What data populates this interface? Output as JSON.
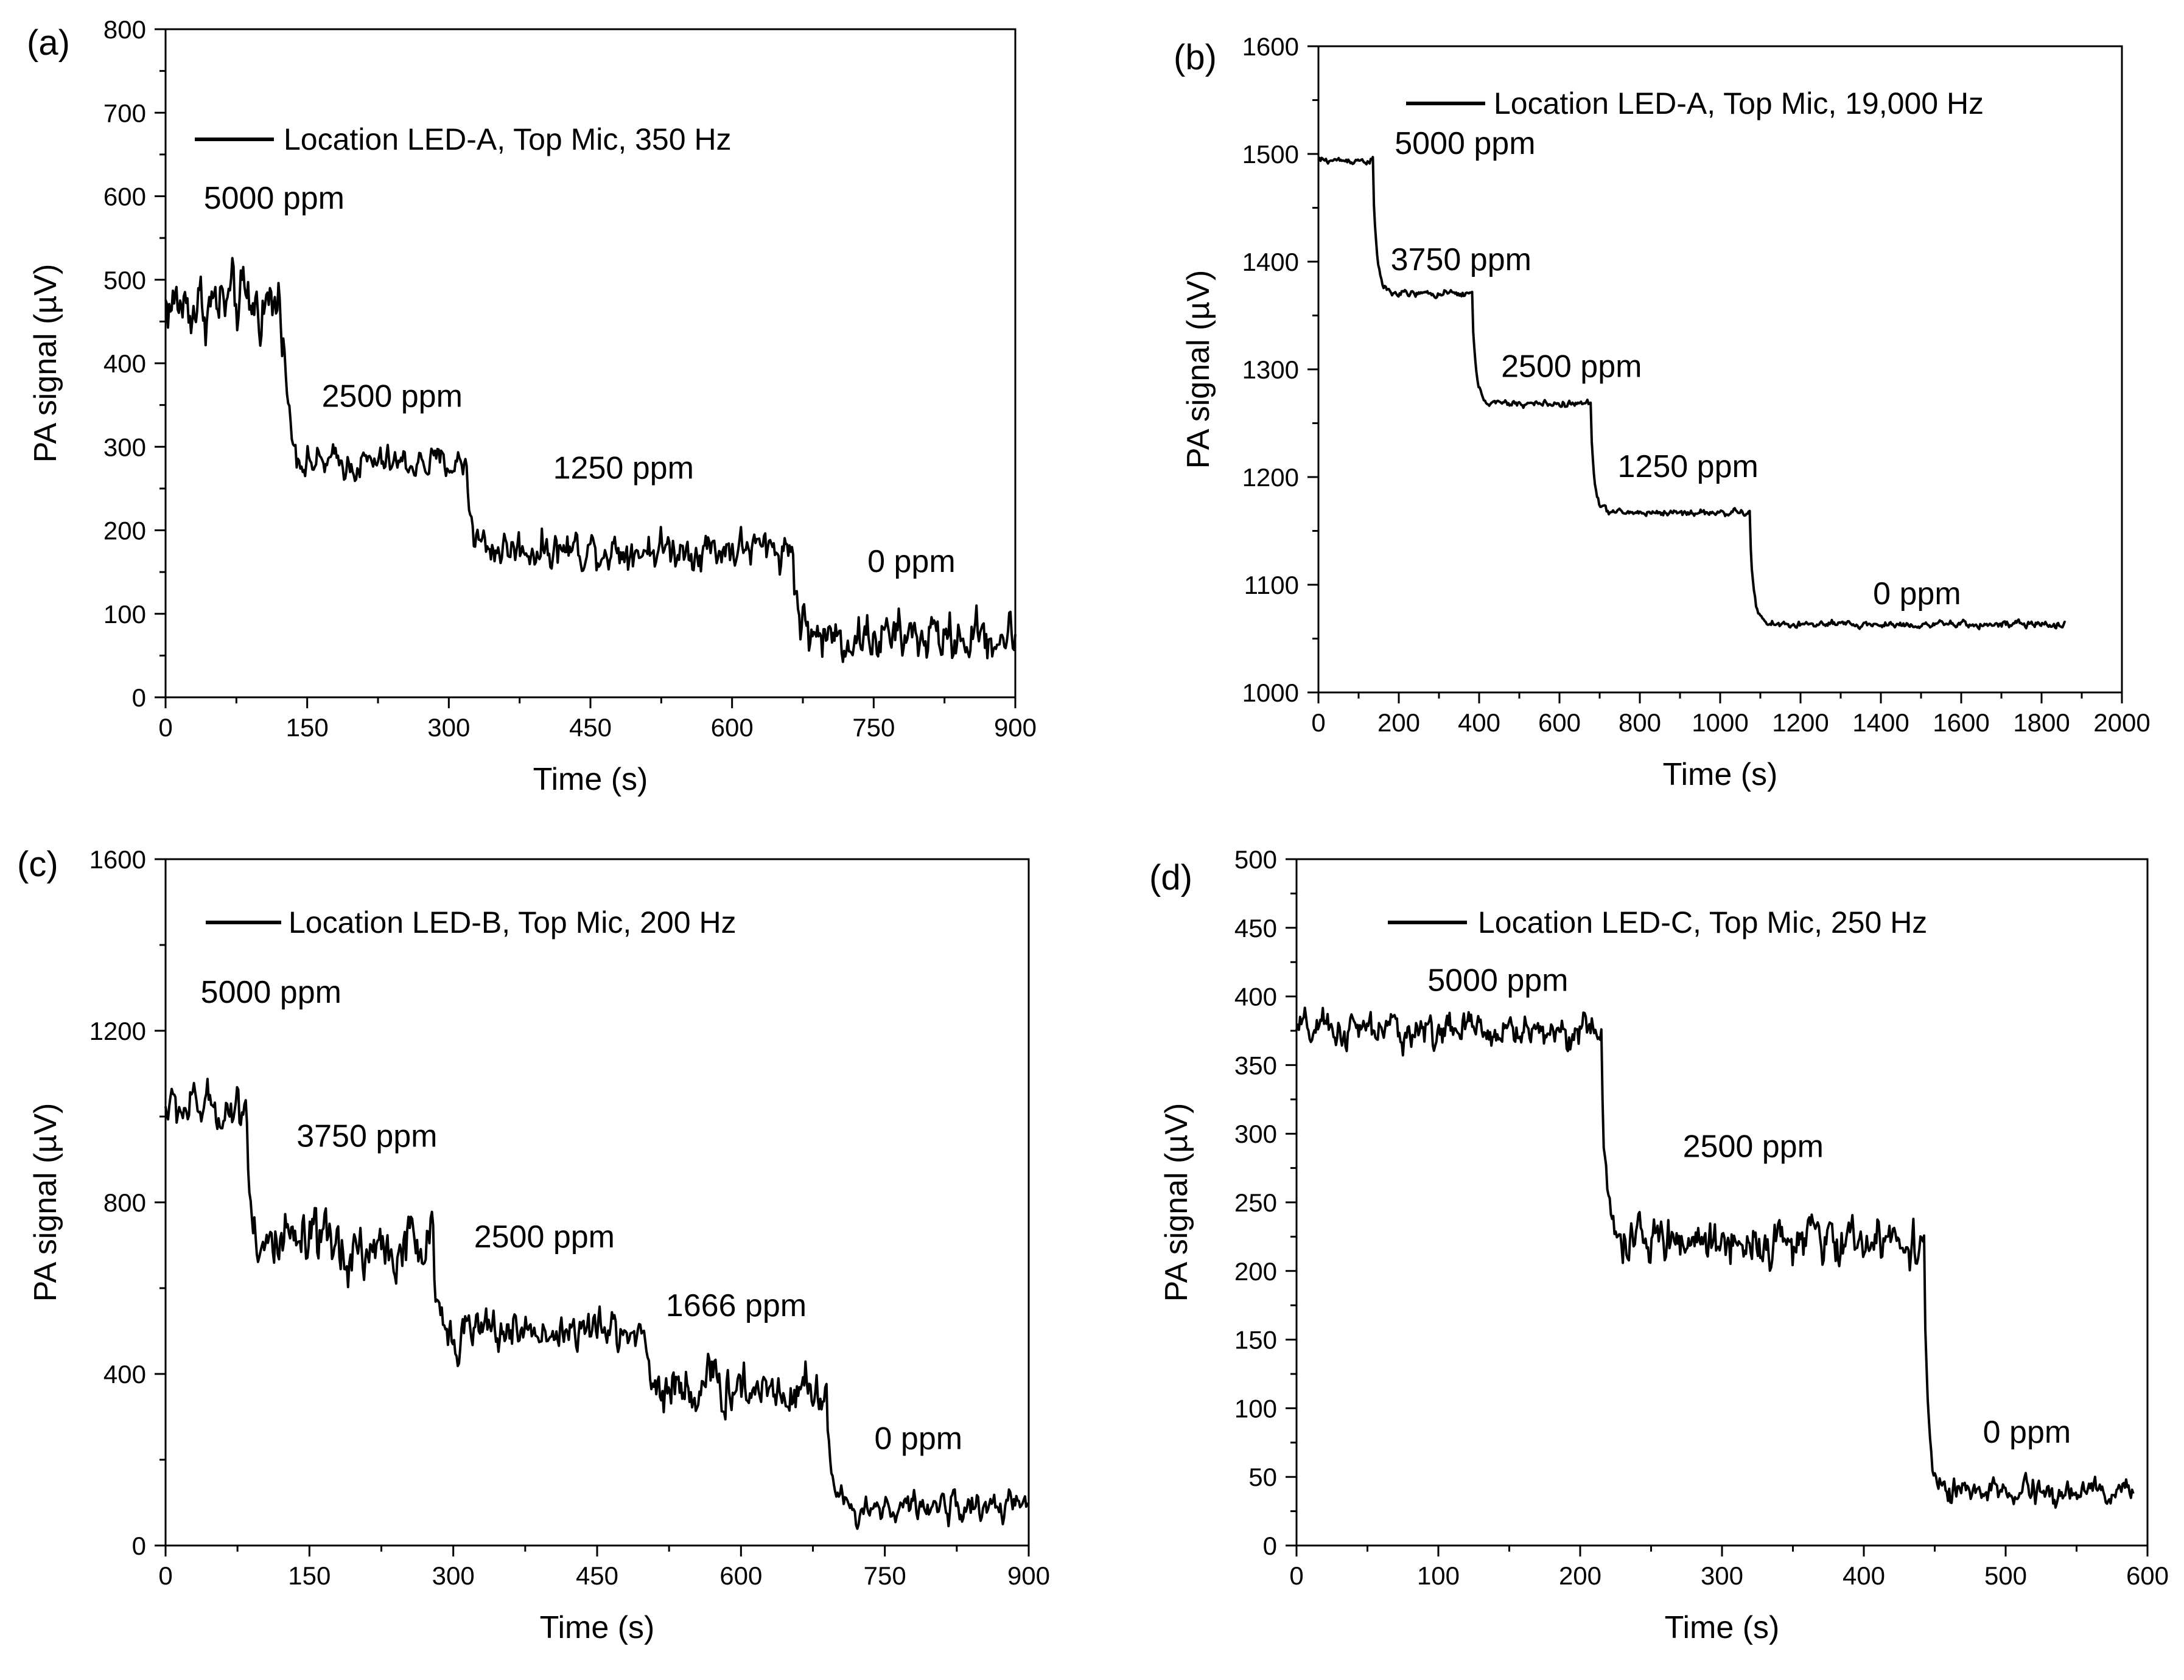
{
  "chart_data": [
    {
      "type": "line",
      "panel_label": "(a)",
      "legend": "Location LED-A, Top Mic, 350 Hz",
      "xlabel": "Time (s)",
      "ylabel": "PA signal (µV)",
      "xlim": [
        0,
        900
      ],
      "ylim": [
        0,
        800
      ],
      "xticks": [
        0,
        150,
        300,
        450,
        600,
        750,
        900
      ],
      "yticks": [
        0,
        100,
        200,
        300,
        400,
        500,
        600,
        700,
        800
      ],
      "step_labels": [
        {
          "text": "5000 ppm",
          "x": 115,
          "y": 585
        },
        {
          "text": "2500 ppm",
          "x": 240,
          "y": 348
        },
        {
          "text": "1250 ppm",
          "x": 485,
          "y": 262
        },
        {
          "text": "0 ppm",
          "x": 790,
          "y": 150
        }
      ],
      "steps": [
        {
          "t_start": 0,
          "t_end": 125,
          "level": 470,
          "noise": 38
        },
        {
          "t_start": 125,
          "t_end": 320,
          "level": 280,
          "noise": 18
        },
        {
          "t_start": 320,
          "t_end": 665,
          "level": 178,
          "noise": 22
        },
        {
          "t_start": 665,
          "t_end": 900,
          "level": 72,
          "noise": 28
        }
      ],
      "tau": 6
    },
    {
      "type": "line",
      "panel_label": "(b)",
      "legend": "Location LED-A, Top Mic, 19,000 Hz",
      "xlabel": "Time (s)",
      "ylabel": "PA signal (µV)",
      "xlim": [
        0,
        2000
      ],
      "ylim": [
        1000,
        1600
      ],
      "xticks": [
        0,
        200,
        400,
        600,
        800,
        1000,
        1200,
        1400,
        1600,
        1800,
        2000
      ],
      "yticks": [
        1000,
        1100,
        1200,
        1300,
        1400,
        1500,
        1600
      ],
      "step_labels": [
        {
          "text": "5000 ppm",
          "x": 365,
          "y": 1500
        },
        {
          "text": "3750 ppm",
          "x": 355,
          "y": 1392
        },
        {
          "text": "2500 ppm",
          "x": 630,
          "y": 1293
        },
        {
          "text": "1250 ppm",
          "x": 920,
          "y": 1200
        },
        {
          "text": "0 ppm",
          "x": 1490,
          "y": 1082
        }
      ],
      "steps": [
        {
          "t_start": 0,
          "t_end": 138,
          "level": 1494,
          "noise": 3
        },
        {
          "t_start": 138,
          "t_end": 385,
          "level": 1370,
          "noise": 3
        },
        {
          "t_start": 385,
          "t_end": 680,
          "level": 1268,
          "noise": 3
        },
        {
          "t_start": 680,
          "t_end": 1075,
          "level": 1167,
          "noise": 3
        },
        {
          "t_start": 1075,
          "t_end": 1860,
          "level": 1063,
          "noise": 3
        }
      ],
      "tau": 10
    },
    {
      "type": "line",
      "panel_label": "(c)",
      "legend": "Location LED-B, Top Mic, 200 Hz",
      "xlabel": "Time (s)",
      "ylabel": "PA signal (µV)",
      "xlim": [
        0,
        900
      ],
      "ylim": [
        0,
        1600
      ],
      "xticks": [
        0,
        150,
        300,
        450,
        600,
        750,
        900
      ],
      "yticks": [
        0,
        400,
        800,
        1200,
        1600
      ],
      "step_labels": [
        {
          "text": "5000 ppm",
          "x": 110,
          "y": 1265
        },
        {
          "text": "3750 ppm",
          "x": 210,
          "y": 930
        },
        {
          "text": "2500 ppm",
          "x": 395,
          "y": 695
        },
        {
          "text": "1666 ppm",
          "x": 595,
          "y": 535
        },
        {
          "text": "0 ppm",
          "x": 785,
          "y": 225
        }
      ],
      "steps": [
        {
          "t_start": 0,
          "t_end": 85,
          "level": 1020,
          "noise": 50
        },
        {
          "t_start": 85,
          "t_end": 280,
          "level": 690,
          "noise": 70
        },
        {
          "t_start": 280,
          "t_end": 500,
          "level": 500,
          "noise": 45
        },
        {
          "t_start": 500,
          "t_end": 690,
          "level": 370,
          "noise": 60
        },
        {
          "t_start": 690,
          "t_end": 900,
          "level": 90,
          "noise": 30
        }
      ],
      "tau": 5
    },
    {
      "type": "line",
      "panel_label": "(d)",
      "legend": "Location LED-C, Top Mic, 250 Hz",
      "xlabel": "Time (s)",
      "ylabel": "PA signal (µV)",
      "xlim": [
        0,
        600
      ],
      "ylim": [
        0,
        500
      ],
      "xticks": [
        0,
        100,
        200,
        300,
        400,
        500,
        600
      ],
      "yticks": [
        0,
        50,
        100,
        150,
        200,
        250,
        300,
        350,
        400,
        450,
        500
      ],
      "step_labels": [
        {
          "text": "5000 ppm",
          "x": 142,
          "y": 404
        },
        {
          "text": "2500 ppm",
          "x": 322,
          "y": 283
        },
        {
          "text": "0 ppm",
          "x": 515,
          "y": 75
        }
      ],
      "steps": [
        {
          "t_start": 0,
          "t_end": 215,
          "level": 375,
          "noise": 12
        },
        {
          "t_start": 215,
          "t_end": 443,
          "level": 222,
          "noise": 15
        },
        {
          "t_start": 443,
          "t_end": 590,
          "level": 38,
          "noise": 9
        }
      ],
      "tau": 3
    }
  ]
}
